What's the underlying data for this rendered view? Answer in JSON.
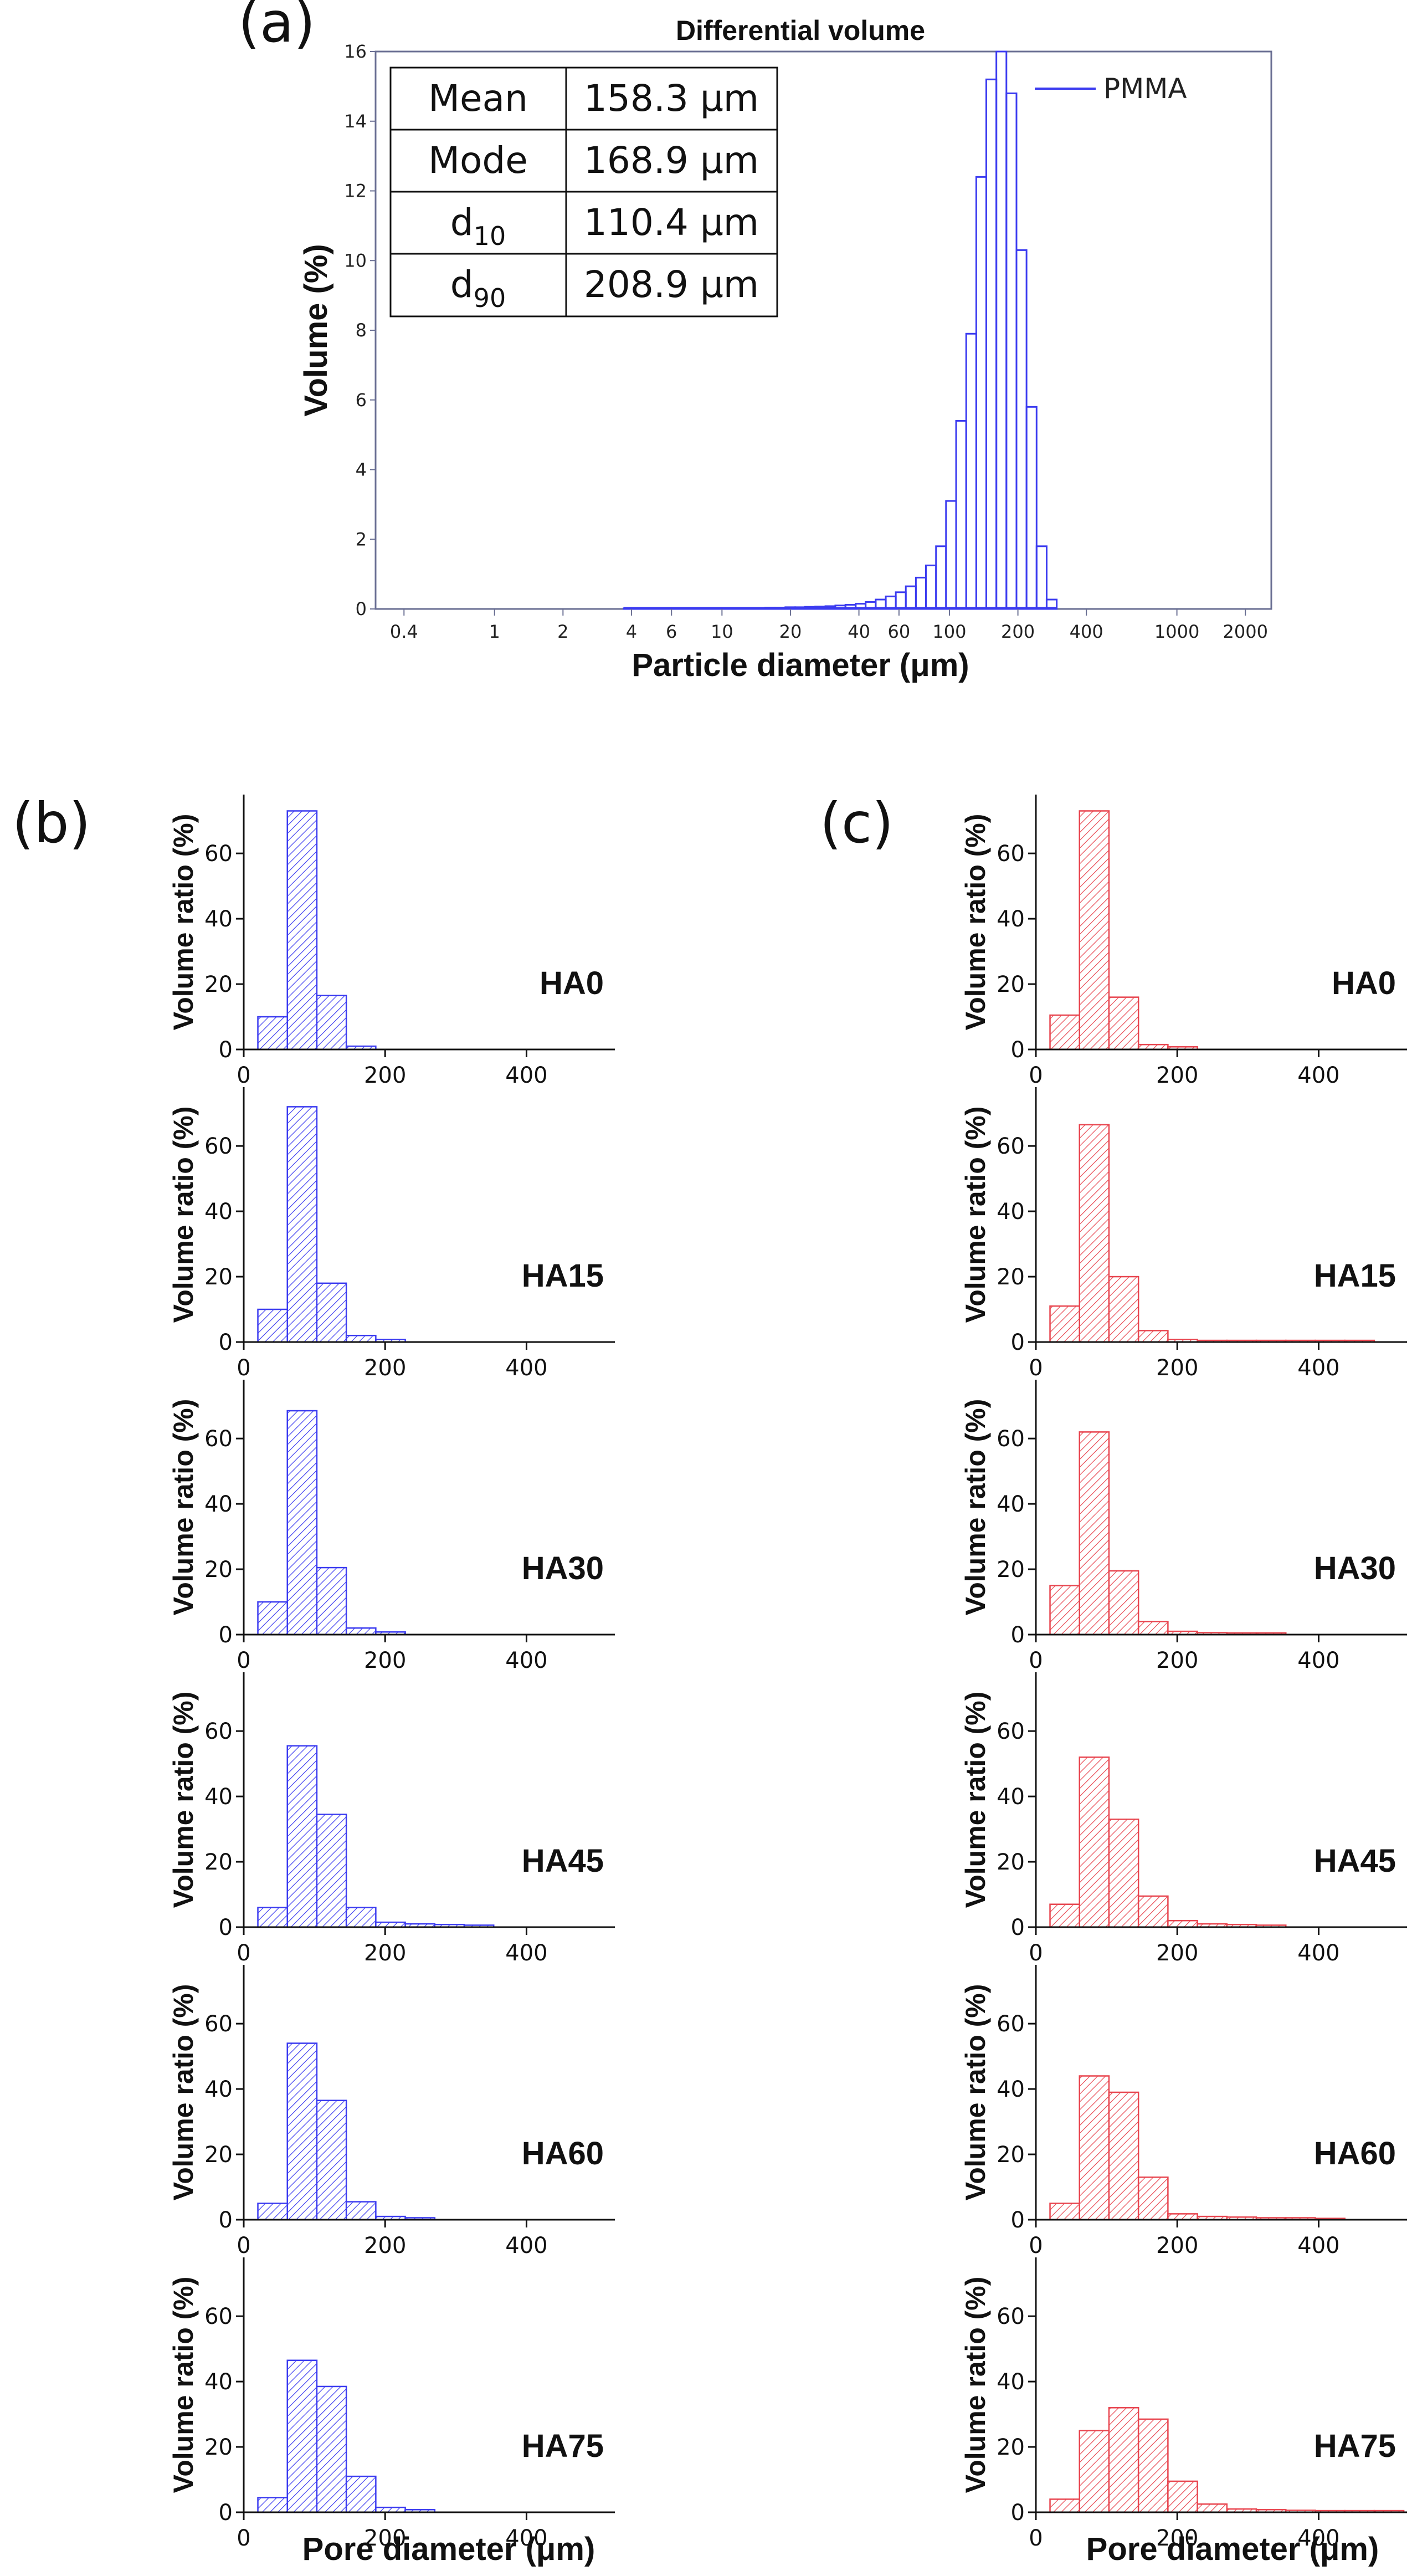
{
  "panel_letters": {
    "a": "(a)",
    "b": "(b)",
    "c": "(c)"
  },
  "colors": {
    "blue": "#3b3bf0",
    "red": "#e8454f",
    "axis": "#111111",
    "panel_a_axis": "#6a6f93"
  },
  "chart_data": [
    {
      "id": "a",
      "type": "bar",
      "title": "Differential volume",
      "xlabel": "Particle diameter (μm)",
      "ylabel": "Volume (%)",
      "x_scale": "log",
      "xlim": [
        0.3,
        2600
      ],
      "ylim": [
        0,
        16
      ],
      "x_tick_labels": [
        "0.4",
        "1",
        "2",
        "4",
        "6",
        "10",
        "20",
        "40",
        "60",
        "100",
        "200",
        "400",
        "1000",
        "2000"
      ],
      "x_ticks": [
        0.4,
        1,
        2,
        4,
        6,
        10,
        20,
        40,
        60,
        100,
        200,
        400,
        1000,
        2000
      ],
      "y_ticks": [
        0,
        2,
        4,
        6,
        8,
        10,
        12,
        14,
        16
      ],
      "legend": {
        "entries": [
          "PMMA"
        ],
        "position": "top-right"
      },
      "stats_table": [
        [
          "Mean",
          "158.3 μm"
        ],
        [
          "Mode",
          "168.9 μm"
        ],
        [
          "d10",
          "110.4 μm"
        ],
        [
          "d90",
          "208.9 μm"
        ]
      ],
      "series": [
        {
          "name": "PMMA",
          "bins": [
            [
              3.7,
              4.1,
              0.02
            ],
            [
              4.1,
              4.6,
              0.02
            ],
            [
              4.6,
              5.1,
              0.02
            ],
            [
              5.1,
              5.6,
              0.02
            ],
            [
              5.6,
              6.2,
              0.02
            ],
            [
              6.2,
              6.9,
              0.02
            ],
            [
              6.9,
              7.6,
              0.02
            ],
            [
              7.6,
              8.4,
              0.02
            ],
            [
              8.4,
              9.3,
              0.02
            ],
            [
              9.3,
              10.3,
              0.02
            ],
            [
              10.3,
              11.4,
              0.03
            ],
            [
              11.4,
              12.6,
              0.03
            ],
            [
              12.6,
              14.0,
              0.03
            ],
            [
              14.0,
              15.5,
              0.03
            ],
            [
              15.5,
              17.1,
              0.04
            ],
            [
              17.1,
              19.0,
              0.04
            ],
            [
              19.0,
              21.0,
              0.05
            ],
            [
              21.0,
              23.2,
              0.05
            ],
            [
              23.2,
              25.7,
              0.06
            ],
            [
              25.7,
              28.5,
              0.07
            ],
            [
              28.5,
              31.5,
              0.08
            ],
            [
              31.5,
              34.9,
              0.1
            ],
            [
              34.9,
              38.7,
              0.12
            ],
            [
              38.7,
              42.8,
              0.15
            ],
            [
              42.8,
              47.4,
              0.2
            ],
            [
              47.4,
              52.5,
              0.27
            ],
            [
              52.5,
              58.1,
              0.36
            ],
            [
              58.1,
              64.3,
              0.48
            ],
            [
              64.3,
              71.2,
              0.65
            ],
            [
              71.2,
              78.8,
              0.9
            ],
            [
              78.8,
              87.3,
              1.25
            ],
            [
              87.3,
              96.6,
              1.8
            ],
            [
              96.6,
              107.0,
              3.1
            ],
            [
              107.0,
              118.5,
              5.4
            ],
            [
              118.5,
              131.2,
              7.9
            ],
            [
              131.2,
              145.2,
              12.4
            ],
            [
              145.2,
              160.8,
              15.2
            ],
            [
              160.8,
              178.0,
              16.0
            ],
            [
              178.0,
              197.1,
              14.8
            ],
            [
              197.1,
              218.2,
              10.3
            ],
            [
              218.2,
              241.6,
              5.8
            ],
            [
              241.6,
              267.5,
              1.8
            ],
            [
              267.5,
              296.2,
              0.27
            ]
          ]
        }
      ]
    },
    {
      "id": "b",
      "type": "bar",
      "color": "blue",
      "xlabel": "Pore diameter (μm)",
      "ylabel": "Volume ratio (%)",
      "xlim": [
        0,
        525
      ],
      "ylim": [
        0,
        78
      ],
      "bin_width": 41.7,
      "x_ticks": [
        0,
        200,
        400
      ],
      "y_ticks": [
        0,
        20,
        40,
        60
      ],
      "panels": [
        {
          "label": "HA0",
          "values": [
            10,
            73,
            16.5,
            1,
            0
          ]
        },
        {
          "label": "HA15",
          "values": [
            10,
            72,
            18,
            2,
            0.8
          ]
        },
        {
          "label": "HA30",
          "values": [
            10,
            68.5,
            20.5,
            2,
            0.8
          ]
        },
        {
          "label": "HA45",
          "values": [
            6,
            55.5,
            34.5,
            6,
            1.5,
            1,
            0.8,
            0.6
          ]
        },
        {
          "label": "HA60",
          "values": [
            5,
            54,
            36.5,
            5.5,
            1,
            0.6
          ]
        },
        {
          "label": "HA75",
          "values": [
            4.5,
            46.5,
            38.5,
            11,
            1.5,
            0.8
          ]
        }
      ]
    },
    {
      "id": "c",
      "type": "bar",
      "color": "red",
      "xlabel": "Pore diameter (μm)",
      "ylabel": "Volume ratio (%)",
      "xlim": [
        0,
        525
      ],
      "ylim": [
        0,
        78
      ],
      "bin_width": 41.7,
      "x_ticks": [
        0,
        200,
        400
      ],
      "y_ticks": [
        0,
        20,
        40,
        60
      ],
      "panels": [
        {
          "label": "HA0",
          "values": [
            10.5,
            73,
            16,
            1.5,
            0.8
          ]
        },
        {
          "label": "HA15",
          "values": [
            11,
            66.5,
            20,
            3.5,
            0.8,
            0.5,
            0.5,
            0.5,
            0.5,
            0.5,
            0.5
          ]
        },
        {
          "label": "HA30",
          "values": [
            15,
            62,
            19.5,
            4,
            1,
            0.6,
            0.5,
            0.5,
            0,
            0,
            0
          ]
        },
        {
          "label": "HA45",
          "values": [
            7,
            52,
            33,
            9.5,
            2,
            1,
            0.8,
            0.6
          ]
        },
        {
          "label": "HA60",
          "values": [
            5,
            44,
            39,
            13,
            1.8,
            1,
            0.8,
            0.6,
            0.6,
            0.4
          ]
        },
        {
          "label": "HA75",
          "values": [
            4,
            25,
            32,
            28.5,
            9.5,
            2.5,
            1,
            0.8,
            0.6,
            0.5,
            0.5,
            0.5
          ]
        }
      ]
    }
  ]
}
